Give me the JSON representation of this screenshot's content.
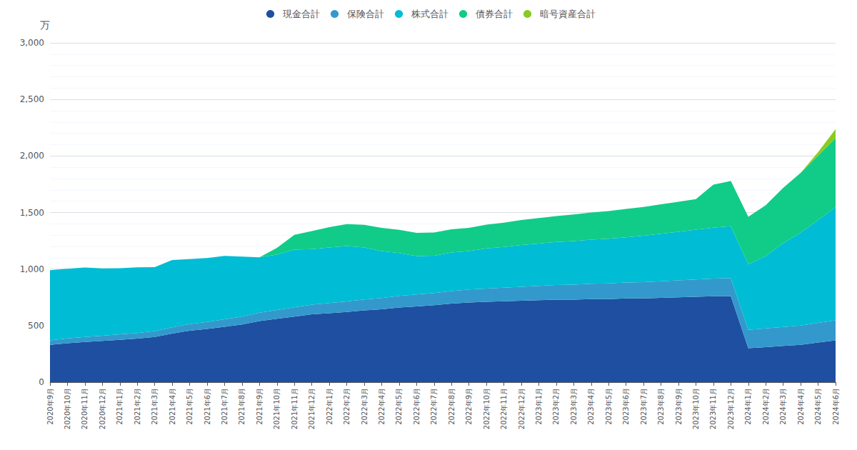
{
  "chart_data": {
    "type": "area",
    "stacked": true,
    "ylabel": "万",
    "categories": [
      "2020年9月",
      "2020年10月",
      "2020年11月",
      "2020年12月",
      "2021年1月",
      "2021年2月",
      "2021年3月",
      "2021年4月",
      "2021年5月",
      "2021年6月",
      "2021年7月",
      "2021年8月",
      "2021年9月",
      "2021年10月",
      "2021年11月",
      "2021年12月",
      "2022年1月",
      "2022年2月",
      "2022年3月",
      "2022年4月",
      "2022年5月",
      "2022年6月",
      "2022年7月",
      "2022年8月",
      "2022年9月",
      "2022年10月",
      "2022年11月",
      "2022年12月",
      "2023年1月",
      "2023年2月",
      "2023年3月",
      "2023年4月",
      "2023年5月",
      "2023年6月",
      "2023年7月",
      "2023年8月",
      "2023年9月",
      "2023年10月",
      "2023年11月",
      "2023年12月",
      "2024年1月",
      "2024年2月",
      "2024年3月",
      "2024年4月",
      "2024年5月",
      "2024年6月"
    ],
    "series": [
      {
        "name": "現金合計",
        "color": "#1e4fa0",
        "values": [
          330,
          345,
          355,
          365,
          375,
          385,
          400,
          430,
          455,
          470,
          490,
          510,
          540,
          560,
          580,
          600,
          610,
          620,
          635,
          645,
          660,
          670,
          680,
          695,
          705,
          710,
          715,
          720,
          725,
          730,
          730,
          735,
          735,
          740,
          740,
          745,
          750,
          755,
          760,
          760,
          300,
          310,
          320,
          330,
          350,
          370
        ]
      },
      {
        "name": "保険合計",
        "color": "#3399cc",
        "values": [
          40,
          42,
          44,
          46,
          48,
          50,
          52,
          55,
          58,
          62,
          66,
          70,
          74,
          78,
          82,
          86,
          90,
          93,
          96,
          99,
          102,
          105,
          108,
          111,
          114,
          117,
          120,
          123,
          126,
          129,
          132,
          135,
          138,
          141,
          144,
          147,
          150,
          153,
          156,
          159,
          162,
          165,
          168,
          171,
          174,
          177
        ]
      },
      {
        "name": "株式合計",
        "color": "#00bcd4",
        "values": [
          620,
          615,
          615,
          595,
          585,
          580,
          565,
          595,
          575,
          565,
          560,
          530,
          490,
          490,
          510,
          490,
          490,
          490,
          460,
          415,
          380,
          340,
          330,
          340,
          340,
          355,
          360,
          370,
          375,
          380,
          385,
          390,
          395,
          400,
          410,
          420,
          430,
          440,
          450,
          460,
          580,
          640,
          740,
          820,
          910,
          1000
        ]
      },
      {
        "name": "債券合計",
        "color": "#11cc88",
        "values": [
          0,
          0,
          0,
          0,
          0,
          0,
          0,
          0,
          0,
          0,
          0,
          0,
          0,
          60,
          130,
          160,
          180,
          195,
          200,
          205,
          205,
          205,
          205,
          205,
          205,
          210,
          215,
          220,
          225,
          230,
          235,
          240,
          245,
          250,
          255,
          260,
          265,
          270,
          380,
          400,
          420,
          450,
          490,
          530,
          570,
          610
        ]
      },
      {
        "name": "暗号資産合計",
        "color": "#88cc22",
        "values": [
          0,
          0,
          0,
          0,
          0,
          0,
          0,
          0,
          0,
          0,
          0,
          0,
          0,
          0,
          0,
          0,
          0,
          0,
          0,
          0,
          0,
          0,
          0,
          0,
          0,
          0,
          0,
          0,
          0,
          0,
          0,
          0,
          0,
          0,
          0,
          0,
          0,
          0,
          0,
          0,
          0,
          0,
          0,
          0,
          30,
          80
        ]
      }
    ],
    "ylim": [
      0,
      3000
    ],
    "yticks": [
      0,
      500,
      {
        "value": 1000,
        "label": "1,000"
      },
      {
        "value": 1500,
        "label": "1,500"
      },
      {
        "value": 2000,
        "label": "2,000"
      },
      {
        "value": 2500,
        "label": "2,500"
      },
      {
        "value": 3000,
        "label": "3,000"
      }
    ],
    "grid": true,
    "legend": "top"
  }
}
